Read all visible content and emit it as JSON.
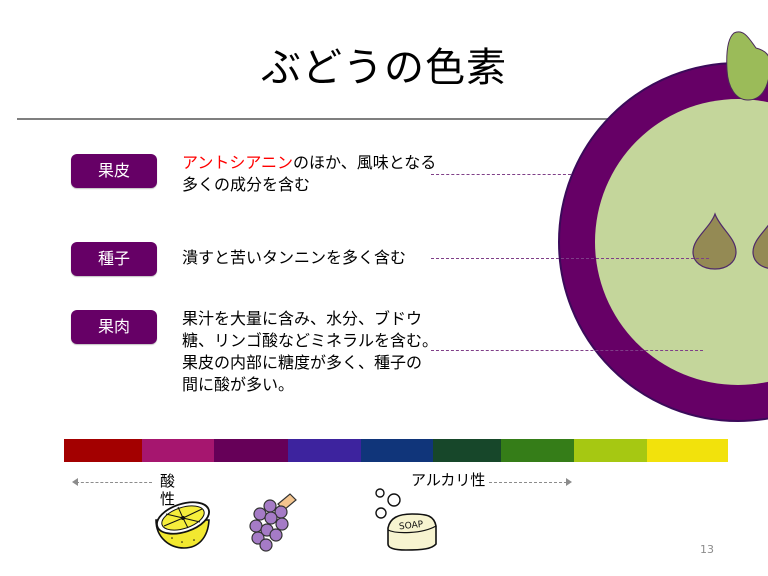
{
  "slide": {
    "title": "ぶどうの色素",
    "page_number": "13"
  },
  "parts": [
    {
      "label": "果皮",
      "desc_highlight": "アントシアニン",
      "desc_line1_rest": "のほか、風味となる",
      "desc_line2": "多くの成分を含む"
    },
    {
      "label": "種子",
      "desc_line1": "潰すと苦いタンニンを多く含む"
    },
    {
      "label": "果肉",
      "desc_lines": [
        "果汁を大量に含み、水分、ブドウ",
        "糖、リンゴ酸などミネラルを含む。",
        "果皮の内部に糖度が多く、種子の",
        "間に酸が多い。"
      ]
    }
  ],
  "ph_scale": {
    "acid_label": "酸性",
    "acid_label_line1": "酸",
    "acid_label_line2": "性",
    "alkaline_label": "アルカリ性",
    "colors": [
      "#a30000",
      "#a6166f",
      "#660058",
      "#3d239e",
      "#10357a",
      "#17472a",
      "#357d18",
      "#a6c812",
      "#f2e20c"
    ],
    "widths": [
      78,
      72,
      74,
      73,
      72,
      68,
      73,
      73,
      81
    ]
  },
  "illustrations": {
    "lemon": "lemon-icon",
    "grapes": "grapes-icon",
    "soap": "soap-icon",
    "soap_text": "SOAP"
  },
  "grape_diagram": {
    "skin_color": "#660066",
    "flesh_color": "#c4d69b",
    "seed_color": "#948a54",
    "leaf_color": "#9bbb59"
  }
}
